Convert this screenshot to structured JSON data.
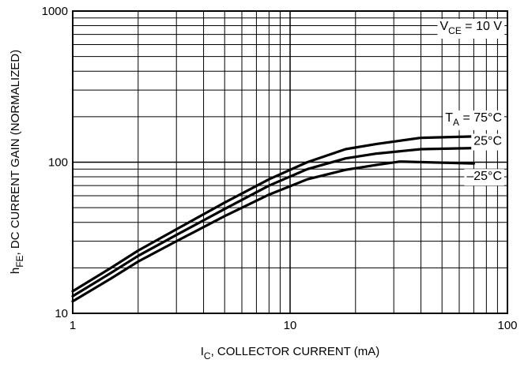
{
  "chart_data": {
    "type": "line",
    "x_scale": "log",
    "y_scale": "log",
    "xlim": [
      1,
      100
    ],
    "ylim": [
      10,
      1000
    ],
    "grid": true,
    "x_ticks": [
      "1",
      "10",
      "100"
    ],
    "y_ticks": [
      "10",
      "100",
      "1000"
    ],
    "xlabel": {
      "main": "I",
      "sub": "C",
      "rest": ", COLLECTOR CURRENT (mA)"
    },
    "ylabel": {
      "main": "h",
      "sub": "FE",
      "rest": ", DC CURRENT GAIN (NORMALIZED)"
    },
    "condition": {
      "main": "V",
      "sub": "CE",
      "rest": " = 10 V"
    },
    "series": [
      {
        "name": "T_A = 75°C",
        "label": {
          "main": "T",
          "sub": "A",
          "rest": " = 75°C"
        },
        "x": [
          1,
          1.5,
          2,
          3,
          5,
          8,
          12,
          18,
          25,
          40,
          70
        ],
        "y": [
          14,
          20,
          26,
          36,
          54,
          77,
          100,
          122,
          132,
          145,
          148
        ]
      },
      {
        "name": "25°C",
        "label": {
          "main": "25°C",
          "sub": "",
          "rest": ""
        },
        "x": [
          1,
          1.5,
          2,
          3,
          5,
          8,
          12,
          18,
          25,
          40,
          70
        ],
        "y": [
          13,
          18.5,
          24,
          33,
          49,
          70,
          90,
          106,
          114,
          122,
          124
        ]
      },
      {
        "name": "–25°C",
        "label": {
          "main": "–25°C",
          "sub": "",
          "rest": ""
        },
        "x": [
          1,
          1.5,
          2,
          3,
          5,
          8,
          12,
          18,
          25,
          32,
          70
        ],
        "y": [
          12,
          17,
          22,
          30,
          44,
          61,
          77,
          89,
          96,
          101,
          98
        ]
      }
    ]
  }
}
